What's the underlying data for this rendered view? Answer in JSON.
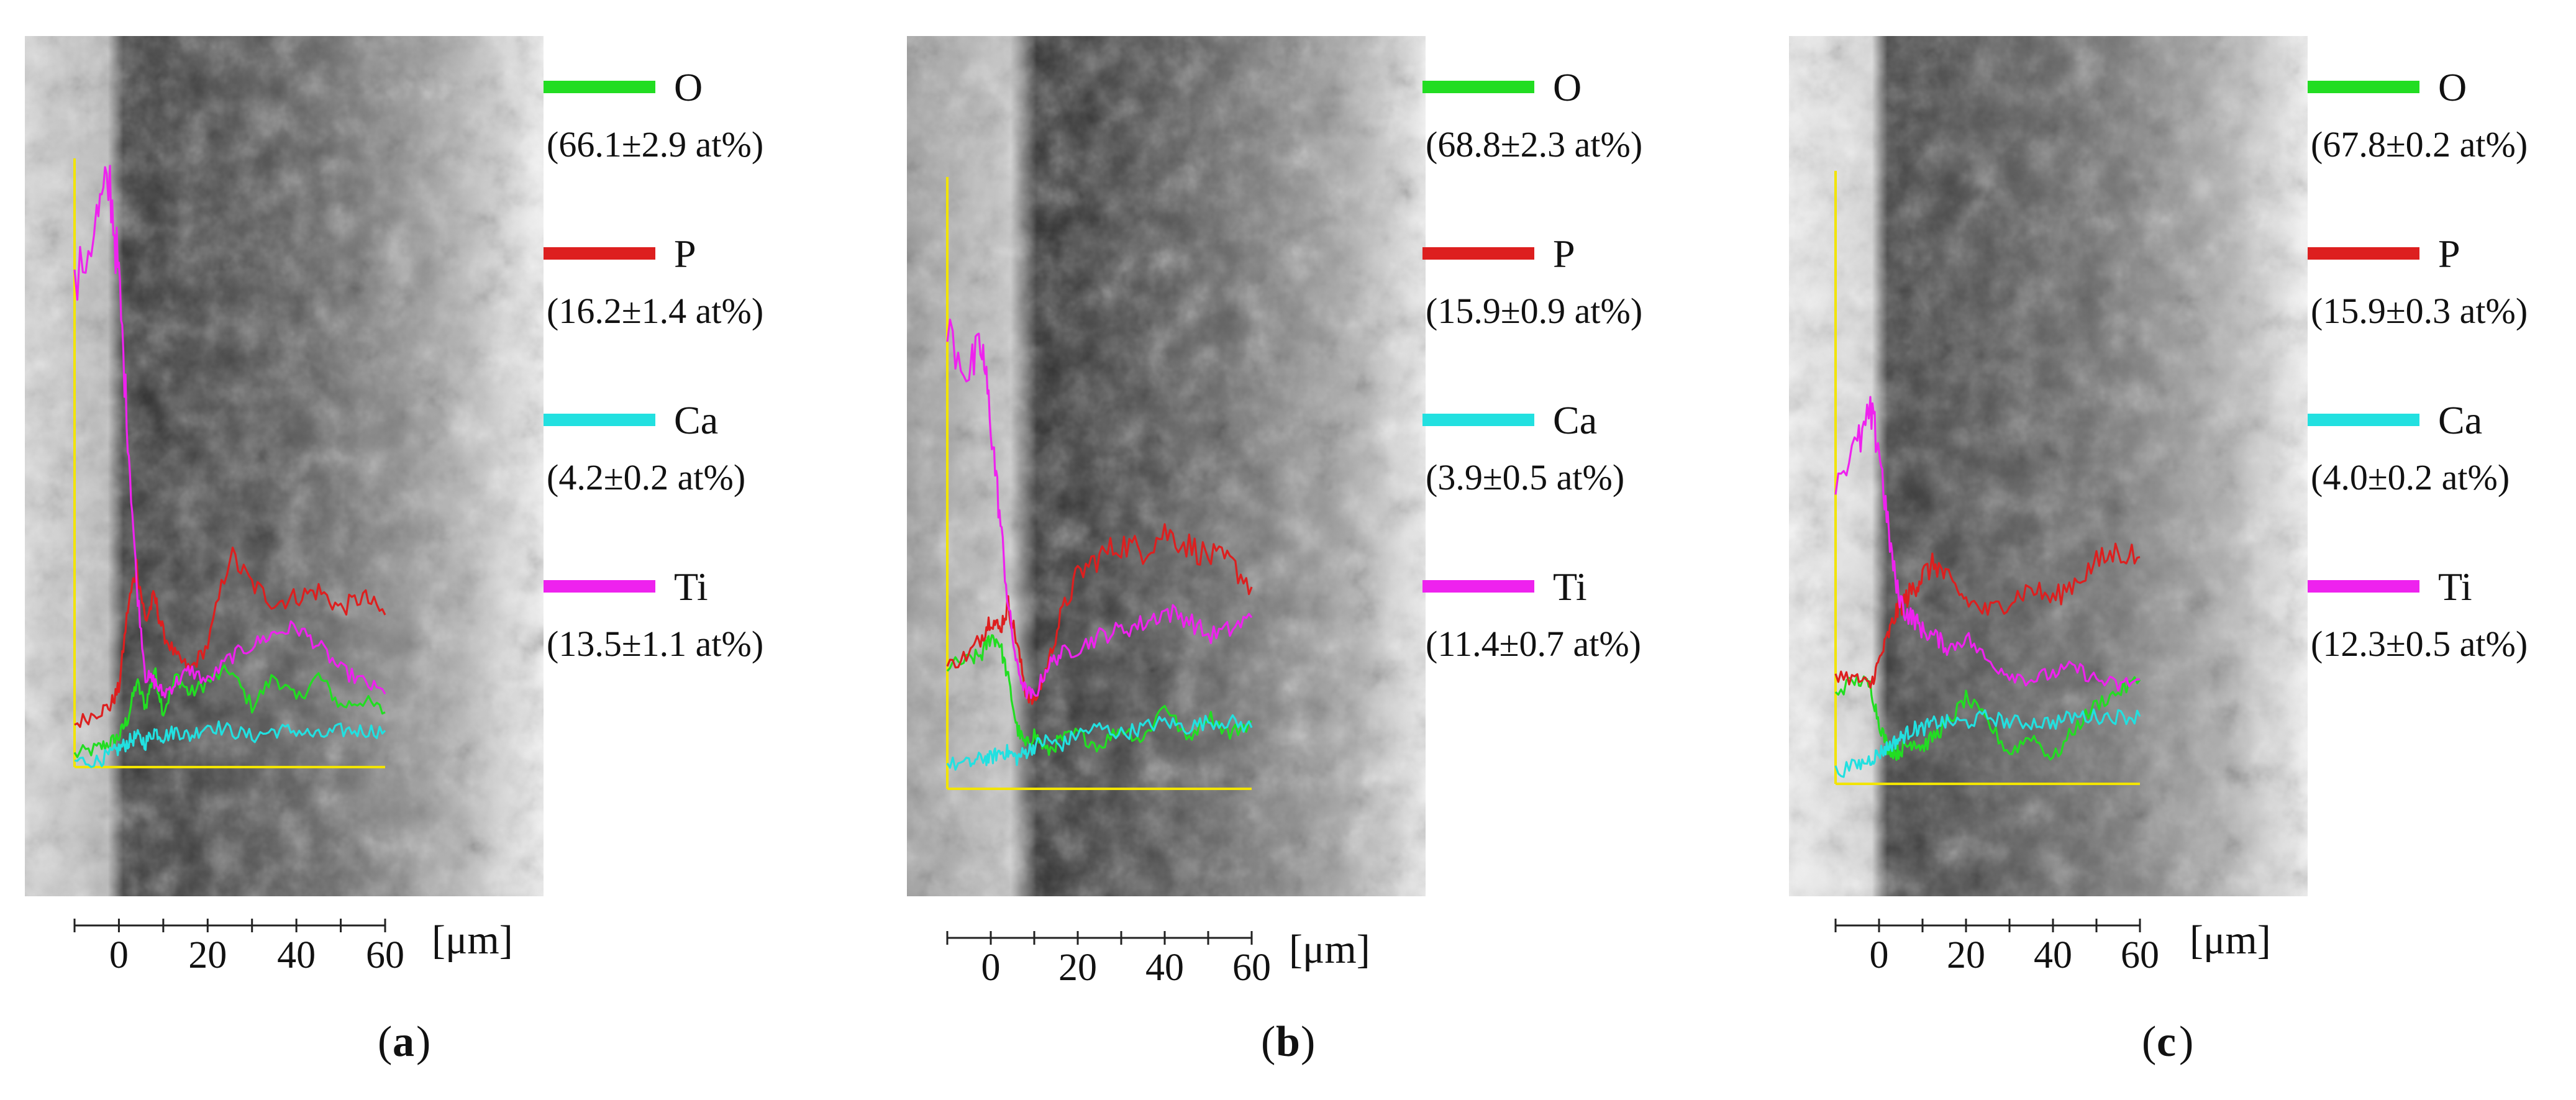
{
  "colors": {
    "O": "#22dd22",
    "P": "#dd1f1f",
    "Ca": "#22e0e0",
    "Ti": "#ee22ee",
    "axis_frame": "#f2e400"
  },
  "chart_data": [
    {
      "type": "line",
      "panel_label": "a",
      "unit_label": "[μm]",
      "xlim": [
        -10,
        60
      ],
      "x_ticks": [
        0,
        20,
        40,
        60
      ],
      "ylim": [
        0,
        100
      ],
      "legend": [
        {
          "element": "O",
          "value": "(66.1±2.9 at%)"
        },
        {
          "element": "P",
          "value": "(16.2±1.4 at%)"
        },
        {
          "element": "Ca",
          "value": "(4.2±0.2 at%)"
        },
        {
          "element": "Ti",
          "value": "(13.5±1.1 at%)"
        }
      ],
      "series": [
        {
          "name": "O",
          "x": [
            -10,
            -5,
            -2,
            0,
            2,
            4,
            6,
            8,
            10,
            13,
            16,
            20,
            25,
            30,
            35,
            40,
            45,
            50,
            55,
            60
          ],
          "values": [
            2,
            3,
            4,
            5,
            8,
            14,
            10,
            16,
            9,
            15,
            12,
            14,
            16,
            10,
            15,
            11,
            15,
            10,
            11,
            9
          ]
        },
        {
          "name": "P",
          "x": [
            -10,
            -5,
            -2,
            0,
            2,
            4,
            6,
            8,
            10,
            13,
            16,
            20,
            25,
            30,
            35,
            40,
            45,
            50,
            55,
            60
          ],
          "values": [
            7,
            9,
            10,
            13,
            26,
            33,
            24,
            28,
            22,
            18,
            16,
            20,
            35,
            30,
            27,
            28,
            29,
            26,
            28,
            25
          ]
        },
        {
          "name": "Ca",
          "x": [
            -10,
            -5,
            -2,
            0,
            2,
            4,
            6,
            8,
            10,
            13,
            16,
            20,
            25,
            30,
            35,
            40,
            45,
            50,
            55,
            60
          ],
          "values": [
            1,
            1,
            2,
            3,
            4,
            5,
            4,
            6,
            5,
            6,
            5,
            7,
            6,
            5,
            6,
            6,
            5,
            6,
            6,
            6
          ]
        },
        {
          "name": "Ti",
          "x": [
            -10,
            -5,
            -2,
            0,
            2,
            4,
            6,
            8,
            10,
            13,
            16,
            20,
            25,
            30,
            35,
            40,
            45,
            50,
            55,
            60
          ],
          "values": [
            78,
            90,
            96,
            80,
            55,
            30,
            15,
            14,
            12,
            14,
            16,
            14,
            18,
            20,
            22,
            23,
            20,
            16,
            14,
            12
          ]
        }
      ]
    },
    {
      "type": "line",
      "panel_label": "b",
      "unit_label": "[μm]",
      "xlim": [
        -10,
        60
      ],
      "x_ticks": [
        0,
        20,
        40,
        60
      ],
      "ylim": [
        0,
        100
      ],
      "legend": [
        {
          "element": "O",
          "value": "(68.8±2.3 at%)"
        },
        {
          "element": "P",
          "value": "(15.9±0.9 at%)"
        },
        {
          "element": "Ca",
          "value": "(3.9±0.5 at%)"
        },
        {
          "element": "Ti",
          "value": "(11.4±0.7 at%)"
        }
      ],
      "series": [
        {
          "name": "O",
          "x": [
            -10,
            -5,
            -2,
            0,
            2,
            4,
            6,
            8,
            10,
            13,
            16,
            20,
            25,
            30,
            35,
            40,
            45,
            50,
            55,
            60
          ],
          "values": [
            20,
            21,
            22,
            25,
            24,
            18,
            10,
            7,
            9,
            6,
            8,
            9,
            7,
            10,
            8,
            14,
            8,
            12,
            9,
            11
          ]
        },
        {
          "name": "P",
          "x": [
            -10,
            -5,
            -2,
            0,
            2,
            4,
            6,
            8,
            10,
            13,
            16,
            20,
            25,
            30,
            35,
            40,
            45,
            50,
            55,
            60
          ],
          "values": [
            20,
            22,
            25,
            28,
            26,
            30,
            24,
            16,
            14,
            20,
            28,
            35,
            38,
            40,
            39,
            42,
            40,
            38,
            37,
            33
          ]
        },
        {
          "name": "Ca",
          "x": [
            -10,
            -5,
            -2,
            0,
            2,
            4,
            6,
            8,
            10,
            13,
            16,
            20,
            25,
            30,
            35,
            40,
            45,
            50,
            55,
            60
          ],
          "values": [
            4,
            4,
            5,
            5,
            6,
            6,
            5,
            6,
            7,
            8,
            7,
            9,
            10,
            9,
            10,
            11,
            10,
            11,
            11,
            10
          ]
        },
        {
          "name": "Ti",
          "x": [
            -10,
            -5,
            -2,
            0,
            2,
            4,
            6,
            8,
            10,
            13,
            16,
            20,
            25,
            30,
            35,
            40,
            45,
            50,
            55,
            60
          ],
          "values": [
            75,
            68,
            72,
            60,
            45,
            30,
            20,
            16,
            15,
            20,
            22,
            23,
            25,
            26,
            27,
            29,
            28,
            25,
            26,
            28
          ]
        }
      ]
    },
    {
      "type": "line",
      "panel_label": "c",
      "unit_label": "[μm]",
      "xlim": [
        -10,
        60
      ],
      "x_ticks": [
        0,
        20,
        40,
        60
      ],
      "ylim": [
        0,
        100
      ],
      "legend": [
        {
          "element": "O",
          "value": "(67.8±0.2 at%)"
        },
        {
          "element": "P",
          "value": "(15.9±0.3 at%)"
        },
        {
          "element": "Ca",
          "value": "(4.0±0.2 at%)"
        },
        {
          "element": "Ti",
          "value": "(12.3±0.5 at%)"
        }
      ],
      "series": [
        {
          "name": "O",
          "x": [
            -10,
            -5,
            -2,
            0,
            2,
            4,
            6,
            8,
            10,
            13,
            16,
            20,
            25,
            30,
            35,
            40,
            45,
            50,
            55,
            60
          ],
          "values": [
            15,
            17,
            16,
            10,
            6,
            5,
            6,
            7,
            6,
            8,
            10,
            14,
            10,
            5,
            8,
            4,
            9,
            13,
            15,
            17
          ]
        },
        {
          "name": "P",
          "x": [
            -10,
            -5,
            -2,
            0,
            2,
            4,
            6,
            8,
            10,
            13,
            16,
            20,
            25,
            30,
            35,
            40,
            45,
            50,
            55,
            60
          ],
          "values": [
            18,
            17,
            16,
            20,
            24,
            28,
            30,
            32,
            34,
            36,
            33,
            30,
            28,
            30,
            32,
            30,
            33,
            36,
            38,
            37
          ]
        },
        {
          "name": "Ca",
          "x": [
            -10,
            -5,
            -2,
            0,
            2,
            4,
            6,
            8,
            10,
            13,
            16,
            20,
            25,
            30,
            35,
            40,
            45,
            50,
            55,
            60
          ],
          "values": [
            2,
            3,
            4,
            5,
            6,
            7,
            8,
            9,
            9,
            10,
            10,
            10,
            11,
            10,
            10,
            10,
            11,
            11,
            11,
            11
          ]
        },
        {
          "name": "Ti",
          "x": [
            -10,
            -5,
            -2,
            0,
            2,
            4,
            6,
            8,
            10,
            13,
            16,
            20,
            25,
            30,
            35,
            40,
            45,
            50,
            55,
            60
          ],
          "values": [
            50,
            55,
            60,
            55,
            42,
            32,
            28,
            27,
            25,
            24,
            22,
            24,
            20,
            18,
            17,
            18,
            19,
            17,
            16,
            17
          ]
        }
      ]
    }
  ]
}
